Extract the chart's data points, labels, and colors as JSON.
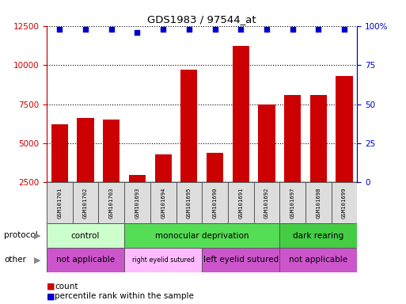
{
  "title": "GDS1983 / 97544_at",
  "samples": [
    "GSM101701",
    "GSM101702",
    "GSM101703",
    "GSM101693",
    "GSM101694",
    "GSM101695",
    "GSM101690",
    "GSM101691",
    "GSM101692",
    "GSM101697",
    "GSM101698",
    "GSM101699"
  ],
  "counts": [
    6200,
    6600,
    6500,
    3000,
    4300,
    9700,
    4400,
    11200,
    7500,
    8100,
    8100,
    9300
  ],
  "percentile_ranks": [
    98,
    98,
    98,
    96,
    98,
    98,
    98,
    98,
    98,
    98,
    98,
    98
  ],
  "bar_color": "#cc0000",
  "dot_color": "#0000cc",
  "ylim_left": [
    2500,
    12500
  ],
  "ylim_right": [
    0,
    100
  ],
  "yticks_left": [
    2500,
    5000,
    7500,
    10000,
    12500
  ],
  "yticks_right": [
    0,
    25,
    50,
    75,
    100
  ],
  "ytick_labels_right": [
    "0",
    "25",
    "50",
    "75",
    "100%"
  ],
  "protocol_groups": [
    {
      "label": "control",
      "start": 0,
      "end": 3,
      "color": "#ccffcc"
    },
    {
      "label": "monocular deprivation",
      "start": 3,
      "end": 9,
      "color": "#55dd55"
    },
    {
      "label": "dark rearing",
      "start": 9,
      "end": 12,
      "color": "#44cc44"
    }
  ],
  "other_groups": [
    {
      "label": "not applicable",
      "start": 0,
      "end": 3,
      "color": "#cc55cc"
    },
    {
      "label": "right eyelid sutured",
      "start": 3,
      "end": 6,
      "color": "#ffbbff"
    },
    {
      "label": "left eyelid sutured",
      "start": 6,
      "end": 9,
      "color": "#cc55cc"
    },
    {
      "label": "not applicable",
      "start": 9,
      "end": 12,
      "color": "#cc55cc"
    }
  ],
  "protocol_label": "protocol",
  "other_label": "other",
  "legend_count_color": "#cc0000",
  "legend_percentile_color": "#0000cc",
  "background_color": "#ffffff",
  "axis_color_left": "#cc0000",
  "axis_color_right": "#0000cc",
  "grid_linestyle": ":",
  "grid_color": "#000000",
  "grid_linewidth": 0.8
}
